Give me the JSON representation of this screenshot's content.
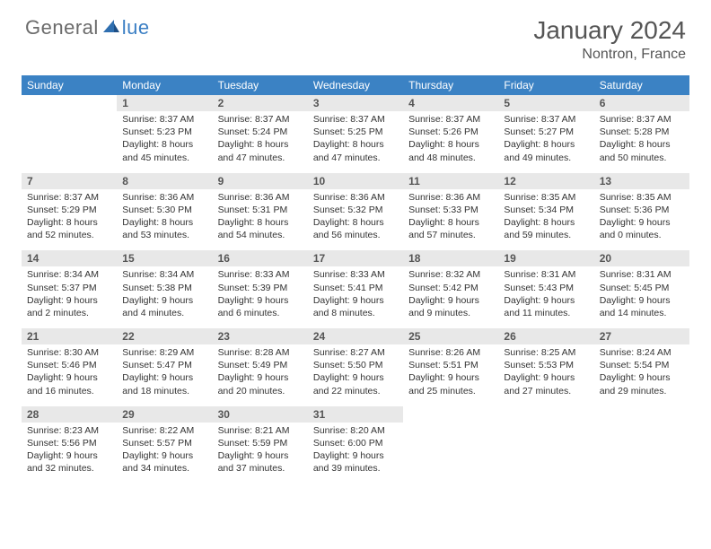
{
  "logo": {
    "main": "General",
    "accent": "lue"
  },
  "title": "January 2024",
  "location": "Nontron, France",
  "weekdays": [
    "Sunday",
    "Monday",
    "Tuesday",
    "Wednesday",
    "Thursday",
    "Friday",
    "Saturday"
  ],
  "colors": {
    "header_bg": "#3b82c4",
    "header_fg": "#ffffff",
    "daynum_bg": "#e8e8e8",
    "cell_border": "#3b82c4",
    "logo_gray": "#6b6b6b",
    "logo_blue": "#3b7fc4"
  },
  "first_weekday_index": 1,
  "days": [
    {
      "n": 1,
      "sunrise": "8:37 AM",
      "sunset": "5:23 PM",
      "dl": "8 hours and 45 minutes."
    },
    {
      "n": 2,
      "sunrise": "8:37 AM",
      "sunset": "5:24 PM",
      "dl": "8 hours and 47 minutes."
    },
    {
      "n": 3,
      "sunrise": "8:37 AM",
      "sunset": "5:25 PM",
      "dl": "8 hours and 47 minutes."
    },
    {
      "n": 4,
      "sunrise": "8:37 AM",
      "sunset": "5:26 PM",
      "dl": "8 hours and 48 minutes."
    },
    {
      "n": 5,
      "sunrise": "8:37 AM",
      "sunset": "5:27 PM",
      "dl": "8 hours and 49 minutes."
    },
    {
      "n": 6,
      "sunrise": "8:37 AM",
      "sunset": "5:28 PM",
      "dl": "8 hours and 50 minutes."
    },
    {
      "n": 7,
      "sunrise": "8:37 AM",
      "sunset": "5:29 PM",
      "dl": "8 hours and 52 minutes."
    },
    {
      "n": 8,
      "sunrise": "8:36 AM",
      "sunset": "5:30 PM",
      "dl": "8 hours and 53 minutes."
    },
    {
      "n": 9,
      "sunrise": "8:36 AM",
      "sunset": "5:31 PM",
      "dl": "8 hours and 54 minutes."
    },
    {
      "n": 10,
      "sunrise": "8:36 AM",
      "sunset": "5:32 PM",
      "dl": "8 hours and 56 minutes."
    },
    {
      "n": 11,
      "sunrise": "8:36 AM",
      "sunset": "5:33 PM",
      "dl": "8 hours and 57 minutes."
    },
    {
      "n": 12,
      "sunrise": "8:35 AM",
      "sunset": "5:34 PM",
      "dl": "8 hours and 59 minutes."
    },
    {
      "n": 13,
      "sunrise": "8:35 AM",
      "sunset": "5:36 PM",
      "dl": "9 hours and 0 minutes."
    },
    {
      "n": 14,
      "sunrise": "8:34 AM",
      "sunset": "5:37 PM",
      "dl": "9 hours and 2 minutes."
    },
    {
      "n": 15,
      "sunrise": "8:34 AM",
      "sunset": "5:38 PM",
      "dl": "9 hours and 4 minutes."
    },
    {
      "n": 16,
      "sunrise": "8:33 AM",
      "sunset": "5:39 PM",
      "dl": "9 hours and 6 minutes."
    },
    {
      "n": 17,
      "sunrise": "8:33 AM",
      "sunset": "5:41 PM",
      "dl": "9 hours and 8 minutes."
    },
    {
      "n": 18,
      "sunrise": "8:32 AM",
      "sunset": "5:42 PM",
      "dl": "9 hours and 9 minutes."
    },
    {
      "n": 19,
      "sunrise": "8:31 AM",
      "sunset": "5:43 PM",
      "dl": "9 hours and 11 minutes."
    },
    {
      "n": 20,
      "sunrise": "8:31 AM",
      "sunset": "5:45 PM",
      "dl": "9 hours and 14 minutes."
    },
    {
      "n": 21,
      "sunrise": "8:30 AM",
      "sunset": "5:46 PM",
      "dl": "9 hours and 16 minutes."
    },
    {
      "n": 22,
      "sunrise": "8:29 AM",
      "sunset": "5:47 PM",
      "dl": "9 hours and 18 minutes."
    },
    {
      "n": 23,
      "sunrise": "8:28 AM",
      "sunset": "5:49 PM",
      "dl": "9 hours and 20 minutes."
    },
    {
      "n": 24,
      "sunrise": "8:27 AM",
      "sunset": "5:50 PM",
      "dl": "9 hours and 22 minutes."
    },
    {
      "n": 25,
      "sunrise": "8:26 AM",
      "sunset": "5:51 PM",
      "dl": "9 hours and 25 minutes."
    },
    {
      "n": 26,
      "sunrise": "8:25 AM",
      "sunset": "5:53 PM",
      "dl": "9 hours and 27 minutes."
    },
    {
      "n": 27,
      "sunrise": "8:24 AM",
      "sunset": "5:54 PM",
      "dl": "9 hours and 29 minutes."
    },
    {
      "n": 28,
      "sunrise": "8:23 AM",
      "sunset": "5:56 PM",
      "dl": "9 hours and 32 minutes."
    },
    {
      "n": 29,
      "sunrise": "8:22 AM",
      "sunset": "5:57 PM",
      "dl": "9 hours and 34 minutes."
    },
    {
      "n": 30,
      "sunrise": "8:21 AM",
      "sunset": "5:59 PM",
      "dl": "9 hours and 37 minutes."
    },
    {
      "n": 31,
      "sunrise": "8:20 AM",
      "sunset": "6:00 PM",
      "dl": "9 hours and 39 minutes."
    }
  ],
  "labels": {
    "sunrise": "Sunrise:",
    "sunset": "Sunset:",
    "daylight": "Daylight:"
  }
}
